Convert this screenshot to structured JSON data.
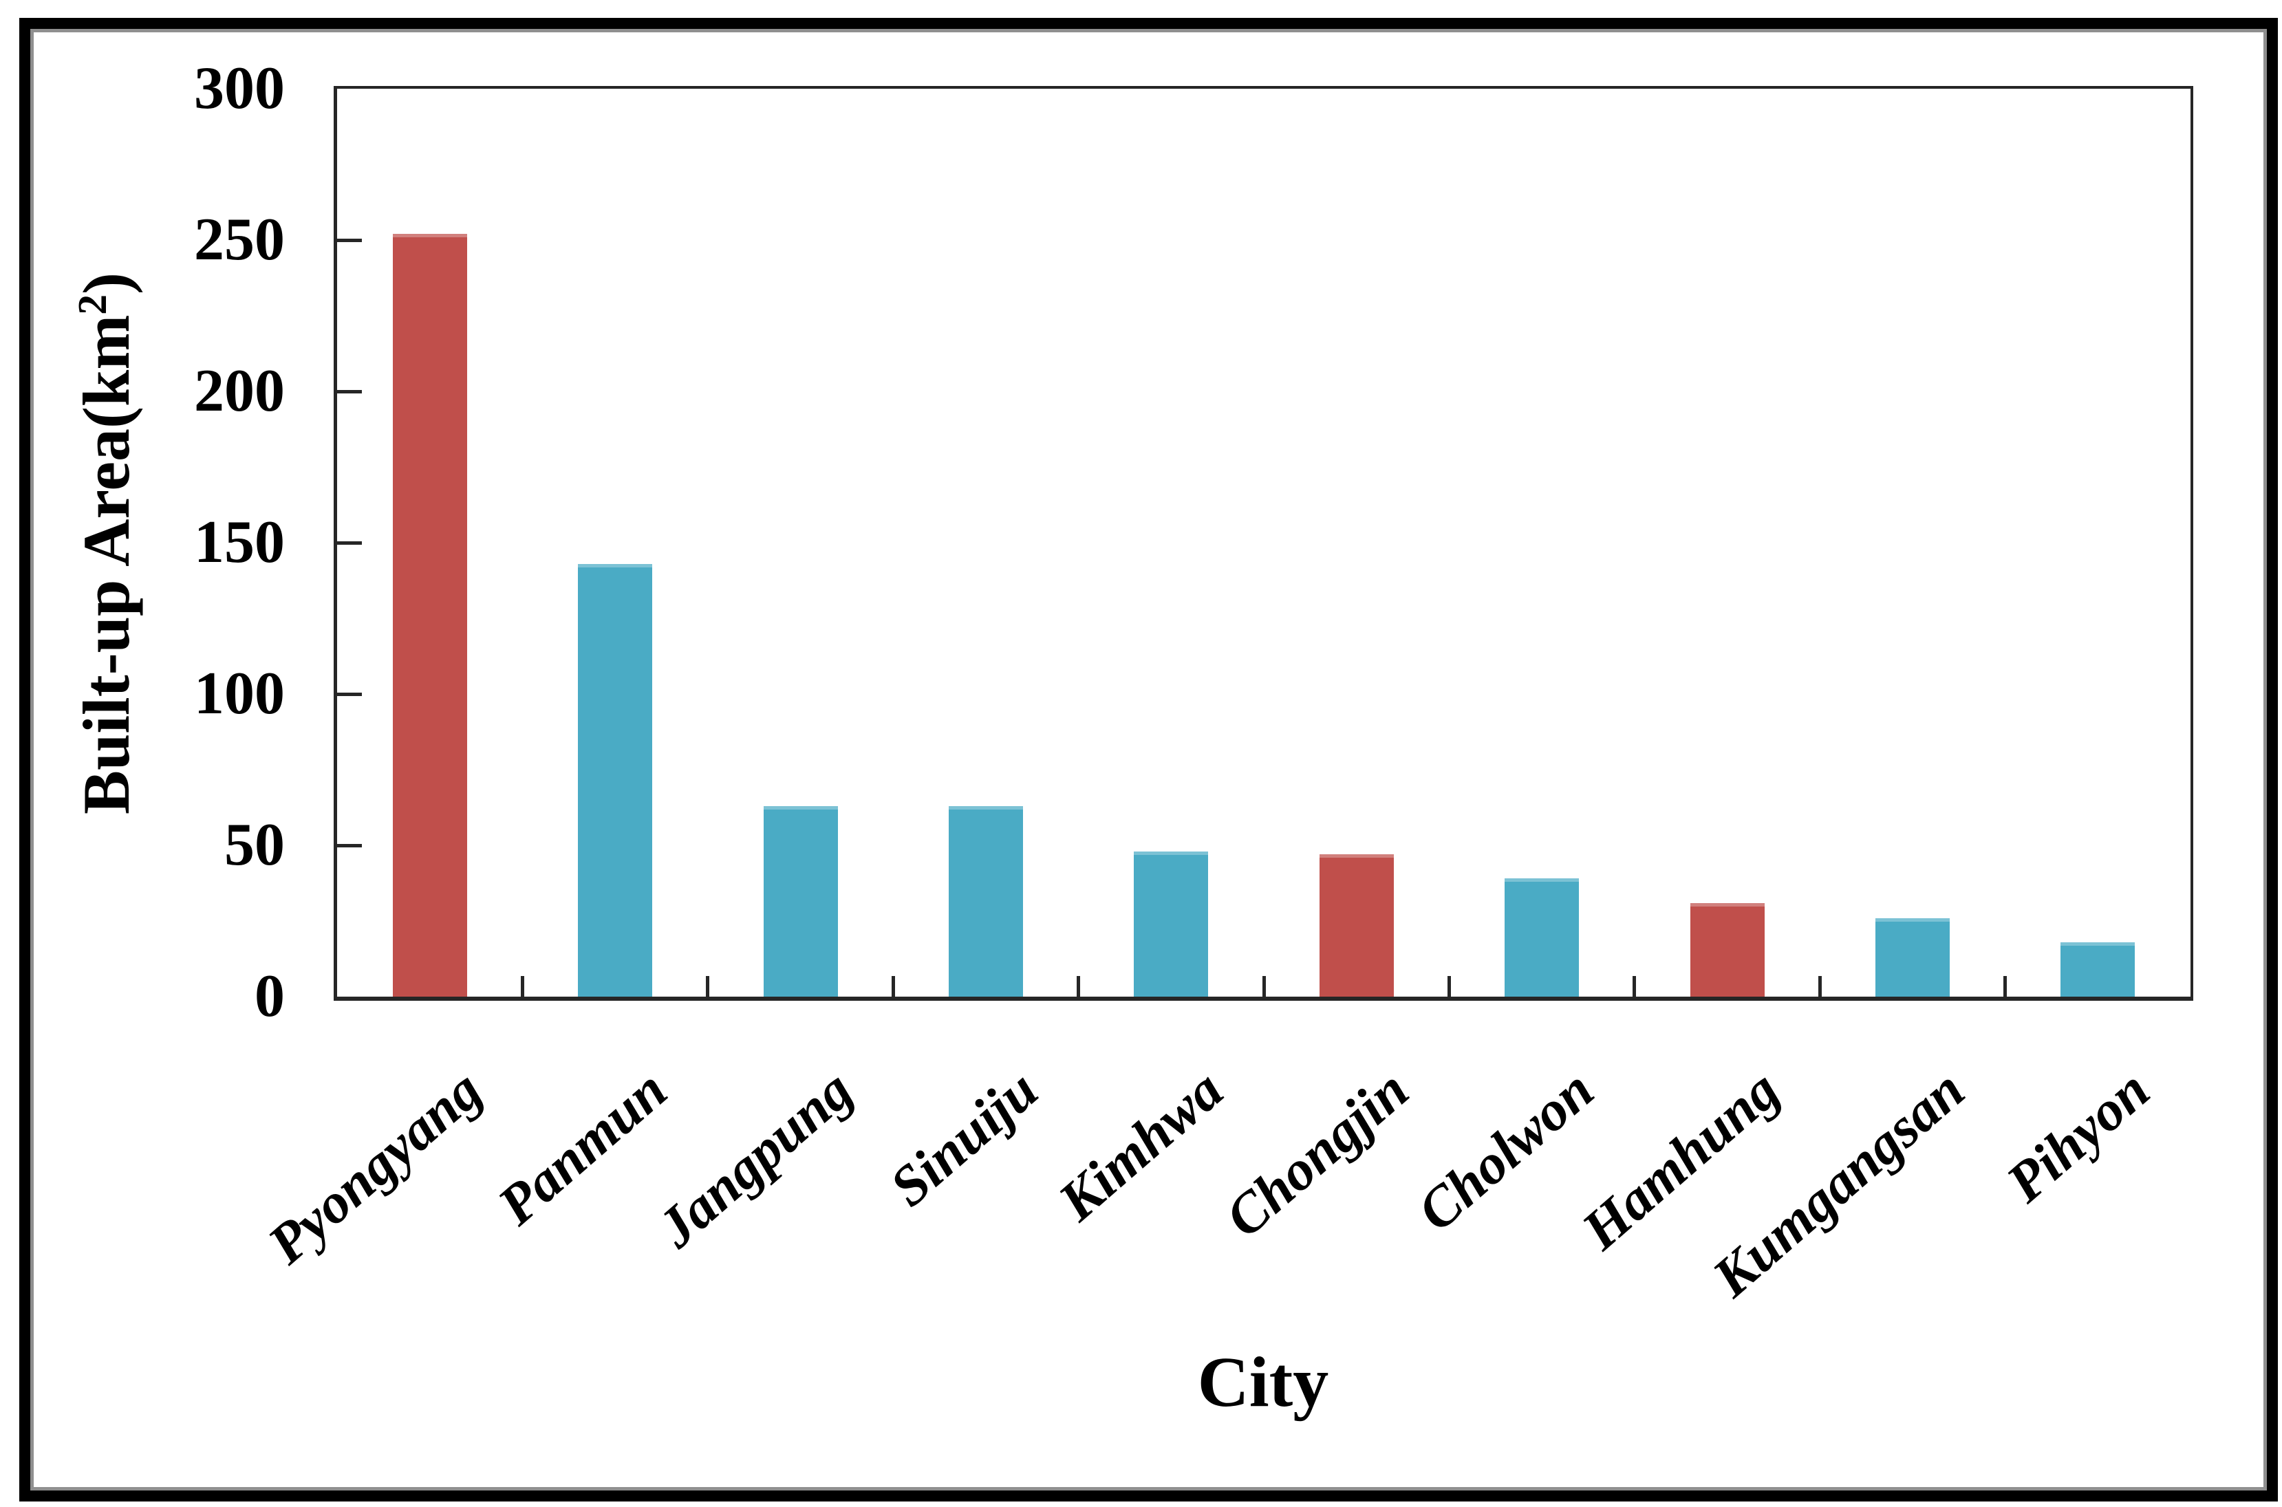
{
  "figure": {
    "x_axis_title": "City",
    "y_axis_title_prefix": "Built-up Area(km",
    "y_axis_title_sup": "2",
    "y_axis_title_suffix": ")"
  },
  "colors": {
    "highlight_red": "#C04F4B",
    "normal_blue": "#4AABC5",
    "axis": "#262626",
    "frame_black": "#000000",
    "frame_inner_gray": "#8F8F8F",
    "background": "#FFFFFF",
    "text": "#000000"
  },
  "chart_data": {
    "type": "bar",
    "title": "",
    "xlabel": "City",
    "ylabel": "Built-up Area(km²)",
    "categories": [
      "Pyongyang",
      "Panmun",
      "Jangpung",
      "Sinuiju",
      "Kimhwa",
      "Chongjin",
      "Cholwon",
      "Hamhung",
      "Kumgangsan",
      "Pihyon"
    ],
    "values": [
      252,
      143,
      63,
      63,
      48,
      47,
      39,
      31,
      26,
      18
    ],
    "bar_colors": [
      "#C04F4B",
      "#4AABC5",
      "#4AABC5",
      "#4AABC5",
      "#4AABC5",
      "#C04F4B",
      "#4AABC5",
      "#C04F4B",
      "#4AABC5",
      "#4AABC5"
    ],
    "ylim": [
      0,
      300
    ],
    "yticks": [
      0,
      50,
      100,
      150,
      200,
      250,
      300
    ],
    "ytick_step": 50,
    "grid": false,
    "legend": null,
    "x_label_rotation_deg": -41,
    "units": "km2"
  }
}
